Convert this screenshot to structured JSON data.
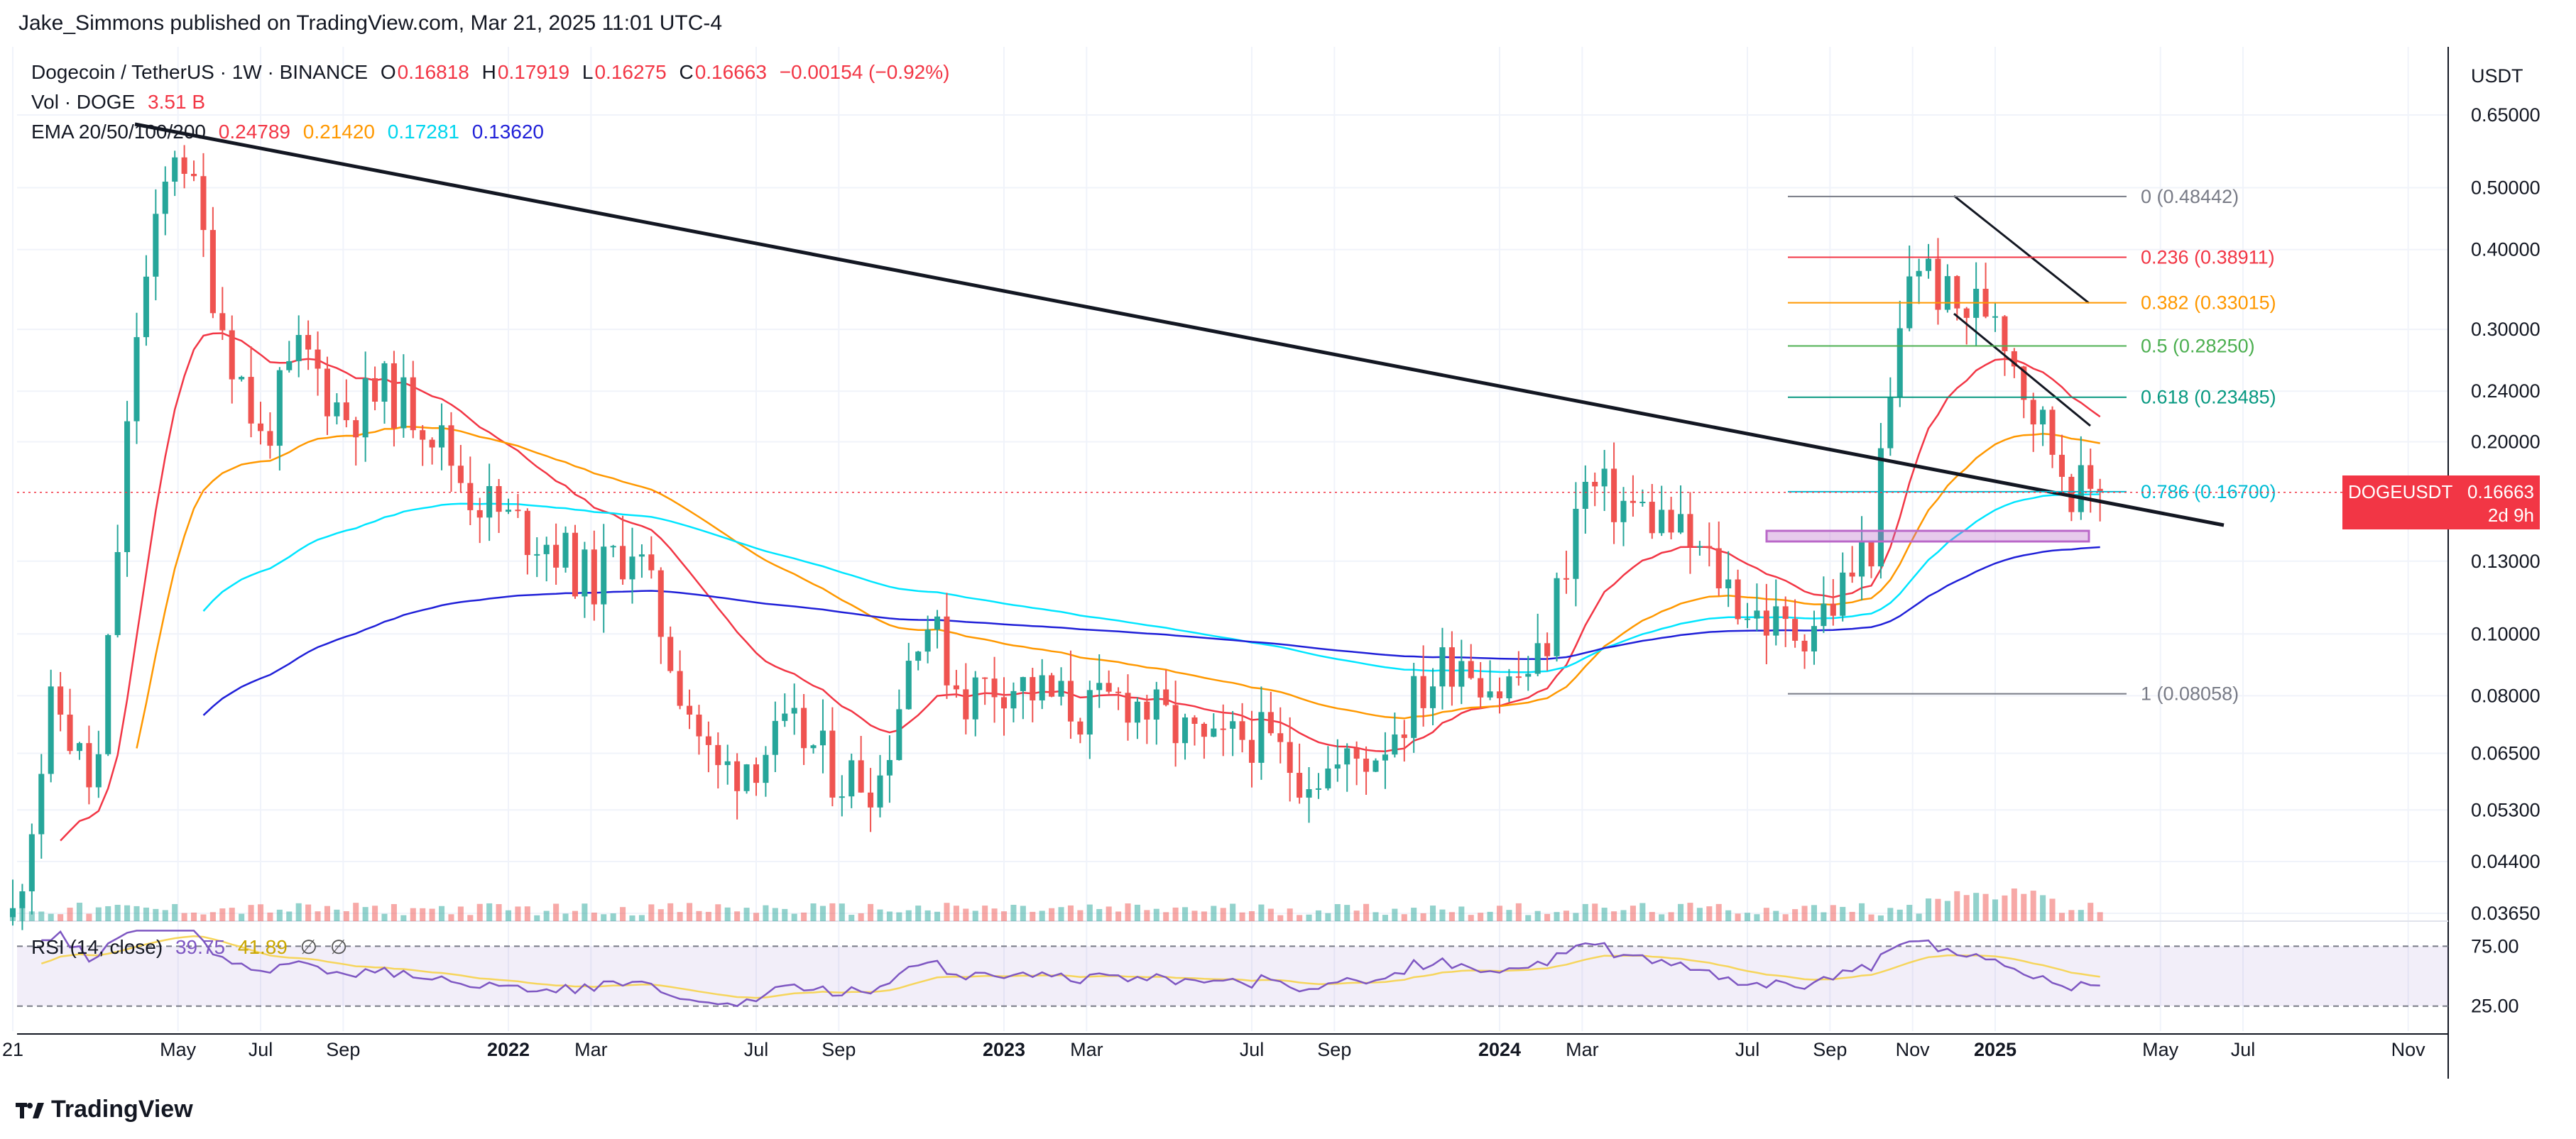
{
  "header": {
    "publisher": "Jake_Simmons published on TradingView.com, Mar 21, 2025 11:01 UTC-4"
  },
  "legend": {
    "symbol": "Dogecoin / TetherUS · 1W · BINANCE",
    "o_label": "O",
    "o": "0.16818",
    "h_label": "H",
    "h": "0.17919",
    "l_label": "L",
    "l": "0.16275",
    "c_label": "C",
    "c": "0.16663",
    "change": "−0.00154 (−0.92%)",
    "vol_label": "Vol · DOGE",
    "vol": "3.51 B",
    "ema_label": "EMA 20/50/100/200",
    "ema20": "0.24789",
    "ema50": "0.21420",
    "ema100": "0.17281",
    "ema200": "0.13620",
    "rsi_label": "RSI (14, close)",
    "rsi": "39.75",
    "rsi_ma": "41.89",
    "rsi_sym1": "∅",
    "rsi_sym2": "∅"
  },
  "price_badge": {
    "symbol": "DOGEUSDT",
    "price": "0.16663",
    "countdown": "2d 9h"
  },
  "footer": {
    "brand": "TradingView"
  },
  "colors": {
    "up": "#26a69a",
    "down": "#ef5350",
    "ema20": "#f23645",
    "ema50": "#ff9800",
    "ema100": "#00e5ff",
    "ema200": "#2020d8",
    "rsi": "#7e57c2",
    "rsi_ma": "#f6d55c"
  },
  "chart_data": {
    "type": "candlestick",
    "price_scale": "log",
    "price_axis_label": "USDT",
    "price_ticks": [
      "0.65000",
      "0.50000",
      "0.40000",
      "0.30000",
      "0.24000",
      "0.20000",
      "0.13000",
      "0.10000",
      "0.08000",
      "0.06500",
      "0.05300",
      "0.04400",
      "0.03650"
    ],
    "rsi_ticks": [
      "75.00",
      "25.00"
    ],
    "time_ticks": [
      "21",
      "May",
      "Jul",
      "Sep",
      "2022",
      "Mar",
      "Jul",
      "Sep",
      "2023",
      "Mar",
      "Jul",
      "Sep",
      "2024",
      "Mar",
      "Jul",
      "Sep",
      "Nov",
      "2025",
      "May",
      "Jul",
      "Nov"
    ],
    "fib_levels": [
      {
        "ratio": "0",
        "value": "0.48442",
        "color": "#787b86"
      },
      {
        "ratio": "0.236",
        "value": "0.38911",
        "color": "#f23645"
      },
      {
        "ratio": "0.382",
        "value": "0.33015",
        "color": "#ff9800"
      },
      {
        "ratio": "0.5",
        "value": "0.28250",
        "color": "#4caf50"
      },
      {
        "ratio": "0.618",
        "value": "0.23485",
        "color": "#089981"
      },
      {
        "ratio": "0.786",
        "value": "0.16700",
        "color": "#00bcd4"
      },
      {
        "ratio": "1",
        "value": "0.08058",
        "color": "#787b86"
      }
    ],
    "price_path": [
      [
        "2021-01",
        0.036
      ],
      [
        "2021-02",
        0.08
      ],
      [
        "2021-03",
        0.055
      ],
      [
        "2021-04",
        0.3
      ],
      [
        "2021-05",
        0.62
      ],
      [
        "2021-06",
        0.32
      ],
      [
        "2021-07",
        0.2
      ],
      [
        "2021-08",
        0.28
      ],
      [
        "2021-09",
        0.22
      ],
      [
        "2021-10",
        0.24
      ],
      [
        "2021-11",
        0.22
      ],
      [
        "2021-12",
        0.17
      ],
      [
        "2022-01",
        0.15
      ],
      [
        "2022-02",
        0.14
      ],
      [
        "2022-03",
        0.12
      ],
      [
        "2022-04",
        0.14
      ],
      [
        "2022-05",
        0.09
      ],
      [
        "2022-06",
        0.06
      ],
      [
        "2022-07",
        0.065
      ],
      [
        "2022-08",
        0.07
      ],
      [
        "2022-09",
        0.06
      ],
      [
        "2022-10",
        0.06
      ],
      [
        "2022-11",
        0.11
      ],
      [
        "2022-12",
        0.08
      ],
      [
        "2023-01",
        0.085
      ],
      [
        "2023-02",
        0.08
      ],
      [
        "2023-03",
        0.075
      ],
      [
        "2023-04",
        0.08
      ],
      [
        "2023-05",
        0.072
      ],
      [
        "2023-06",
        0.065
      ],
      [
        "2023-07",
        0.07
      ],
      [
        "2023-08",
        0.062
      ],
      [
        "2023-09",
        0.061
      ],
      [
        "2023-10",
        0.066
      ],
      [
        "2023-11",
        0.08
      ],
      [
        "2023-12",
        0.095
      ],
      [
        "2024-01",
        0.082
      ],
      [
        "2024-02",
        0.09
      ],
      [
        "2024-03",
        0.17
      ],
      [
        "2024-04",
        0.16
      ],
      [
        "2024-05",
        0.15
      ],
      [
        "2024-06",
        0.13
      ],
      [
        "2024-07",
        0.11
      ],
      [
        "2024-08",
        0.1
      ],
      [
        "2024-09",
        0.11
      ],
      [
        "2024-10",
        0.14
      ],
      [
        "2024-11",
        0.4
      ],
      [
        "2024-12",
        0.32
      ],
      [
        "2025-01",
        0.33
      ],
      [
        "2025-02",
        0.22
      ],
      [
        "2025-03",
        0.167
      ]
    ],
    "last_close": 0.16663
  }
}
